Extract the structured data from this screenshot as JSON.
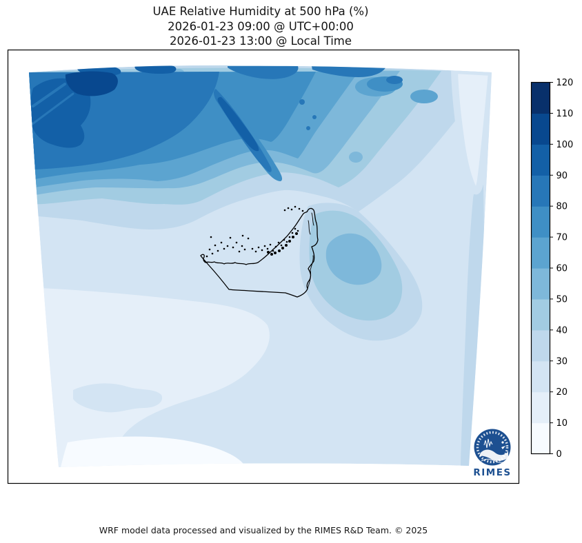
{
  "title": {
    "line1": "UAE Relative Humidity at 500 hPa (%)",
    "line2": "2026-01-23 09:00 @ UTC+00:00",
    "line3": "2026-01-23 13:00 @ Local Time"
  },
  "footer": {
    "credit": "WRF model data processed and visualized by the RIMES R&D Team. © 2025"
  },
  "logo": {
    "label": "RIMES",
    "brand_color": "#1d5091"
  },
  "chart_data": {
    "type": "heatmap",
    "subtype": "filled_contour_map",
    "title": "UAE Relative Humidity at 500 hPa (%)",
    "variable": "Relative Humidity",
    "pressure_level_hPa": 500,
    "units": "%",
    "valid_time_utc": "2026-01-23 09:00 @ UTC+00:00",
    "valid_time_local": "2026-01-23 13:00 @ Local Time",
    "colormap": "Blues",
    "levels": [
      0,
      10,
      20,
      30,
      40,
      50,
      60,
      70,
      80,
      90,
      100,
      110,
      120
    ],
    "level_colors": [
      "#f7fbff",
      "#e5eff9",
      "#d3e4f3",
      "#bfd8ec",
      "#a2cce2",
      "#7eb8da",
      "#5ca4d0",
      "#3f8fc5",
      "#2777b8",
      "#1360a7",
      "#08488f",
      "#08306b"
    ],
    "colorbar": {
      "orientation": "vertical",
      "position": "right",
      "ticks": [
        0,
        10,
        20,
        30,
        40,
        50,
        60,
        70,
        80,
        90,
        100,
        110,
        120
      ]
    },
    "overlay": "UAE coastline, islands and administrative boundary drawn in black",
    "pattern_summary": "High humidity band (80-110%) across the north/northwest with darkest core in the top-left; mottled 40-80% over the northern mountains; values decrease southward through banded contours to a 0-10% minimum in the southwest; secondary 50-60% local maximum east of the UAE; light 10-20% wedge at the top-right corner; 30-40% strip along the right edge.",
    "sample_points": [
      {
        "region": "northwest corner",
        "value_pct": 95
      },
      {
        "region": "top-left dark core",
        "value_pct": 105
      },
      {
        "region": "north-central mountain streak",
        "value_pct": 90
      },
      {
        "region": "top-right corner wedge",
        "value_pct": 15
      },
      {
        "region": "central UAE coast",
        "value_pct": 25
      },
      {
        "region": "east-central local maximum",
        "value_pct": 55
      },
      {
        "region": "southwest minimum",
        "value_pct": 5
      },
      {
        "region": "south-central",
        "value_pct": 25
      },
      {
        "region": "right edge strip",
        "value_pct": 35
      }
    ]
  }
}
